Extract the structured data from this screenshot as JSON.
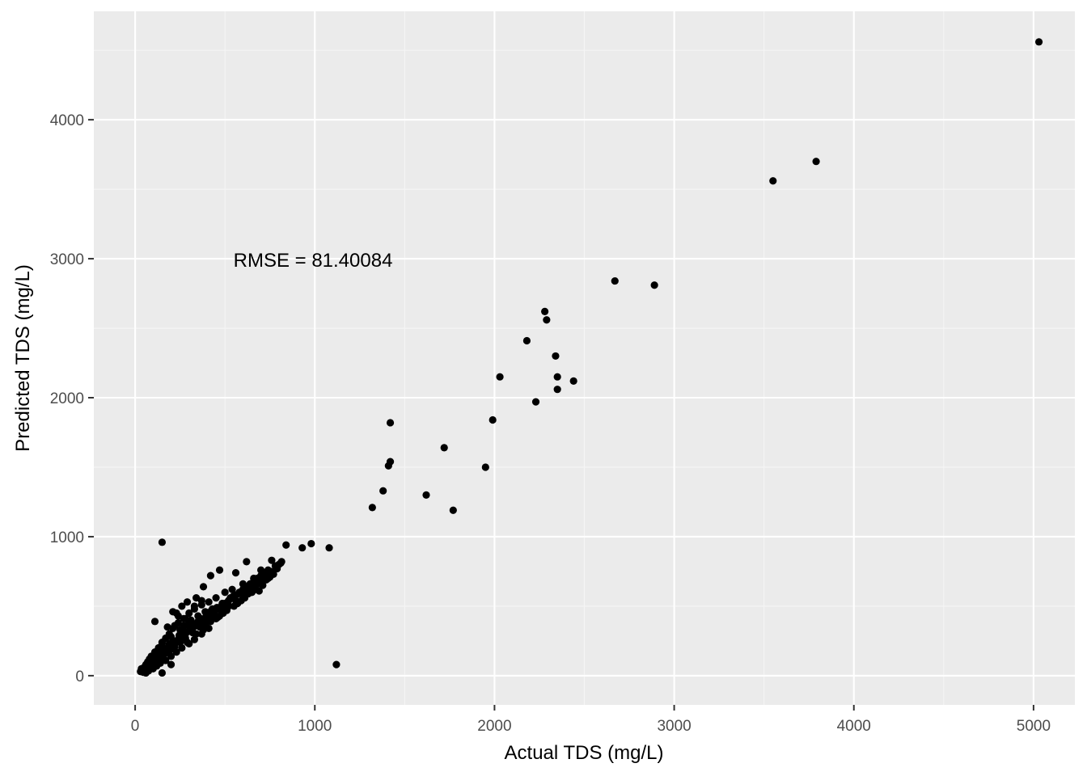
{
  "chart_data": {
    "type": "scatter",
    "xlabel": "Actual TDS (mg/L)",
    "ylabel": "Predicted TDS (mg/L)",
    "xlim": [
      -230,
      5230
    ],
    "ylim": [
      -210,
      4780
    ],
    "x_ticks": [
      0,
      1000,
      2000,
      3000,
      4000,
      5000
    ],
    "x_tick_labels": [
      "0",
      "1000",
      "2000",
      "3000",
      "4000",
      "5000"
    ],
    "y_ticks": [
      0,
      1000,
      2000,
      3000,
      4000
    ],
    "y_tick_labels": [
      "0",
      "1000",
      "2000",
      "3000",
      "4000"
    ],
    "grid": true,
    "annotation": {
      "text": "RMSE = 81.40084",
      "x": 990,
      "y": 2990
    },
    "colors": {
      "panel": "#ebebeb",
      "grid_major": "#ffffff",
      "grid_minor": "#f5f5f5",
      "point": "#000000",
      "tick": "#333333"
    },
    "points": [
      [
        5030,
        4560
      ],
      [
        3790,
        3700
      ],
      [
        3550,
        3560
      ],
      [
        2670,
        2840
      ],
      [
        2890,
        2810
      ],
      [
        2280,
        2620
      ],
      [
        2290,
        2560
      ],
      [
        2180,
        2410
      ],
      [
        2340,
        2300
      ],
      [
        2030,
        2150
      ],
      [
        2350,
        2150
      ],
      [
        2440,
        2120
      ],
      [
        2350,
        2060
      ],
      [
        2230,
        1970
      ],
      [
        1990,
        1840
      ],
      [
        1420,
        1820
      ],
      [
        1720,
        1640
      ],
      [
        1420,
        1540
      ],
      [
        1410,
        1510
      ],
      [
        1950,
        1500
      ],
      [
        1380,
        1330
      ],
      [
        1620,
        1300
      ],
      [
        1320,
        1210
      ],
      [
        1770,
        1190
      ],
      [
        150,
        960
      ],
      [
        980,
        950
      ],
      [
        840,
        940
      ],
      [
        930,
        920
      ],
      [
        1080,
        920
      ],
      [
        1120,
        80
      ],
      [
        760,
        830
      ],
      [
        800,
        800
      ],
      [
        620,
        820
      ],
      [
        470,
        760
      ],
      [
        420,
        720
      ],
      [
        380,
        640
      ],
      [
        560,
        740
      ],
      [
        700,
        760
      ],
      [
        660,
        700
      ],
      [
        600,
        660
      ],
      [
        540,
        620
      ],
      [
        500,
        600
      ],
      [
        450,
        560
      ],
      [
        410,
        530
      ],
      [
        370,
        510
      ],
      [
        330,
        480
      ],
      [
        300,
        450
      ],
      [
        270,
        410
      ],
      [
        240,
        380
      ],
      [
        210,
        340
      ],
      [
        190,
        300
      ],
      [
        170,
        270
      ],
      [
        150,
        240
      ],
      [
        130,
        200
      ],
      [
        110,
        170
      ],
      [
        90,
        140
      ],
      [
        80,
        120
      ],
      [
        70,
        100
      ],
      [
        60,
        80
      ],
      [
        50,
        60
      ],
      [
        40,
        40
      ],
      [
        30,
        30
      ],
      [
        45,
        25
      ],
      [
        60,
        20
      ],
      [
        35,
        50
      ],
      [
        55,
        45
      ],
      [
        75,
        55
      ],
      [
        85,
        75
      ],
      [
        95,
        90
      ],
      [
        105,
        110
      ],
      [
        120,
        130
      ],
      [
        140,
        150
      ],
      [
        160,
        170
      ],
      [
        180,
        200
      ],
      [
        200,
        220
      ],
      [
        220,
        240
      ],
      [
        240,
        260
      ],
      [
        260,
        280
      ],
      [
        280,
        300
      ],
      [
        300,
        320
      ],
      [
        320,
        340
      ],
      [
        340,
        360
      ],
      [
        360,
        380
      ],
      [
        380,
        400
      ],
      [
        400,
        420
      ],
      [
        420,
        440
      ],
      [
        440,
        460
      ],
      [
        460,
        480
      ],
      [
        480,
        500
      ],
      [
        500,
        520
      ],
      [
        520,
        540
      ],
      [
        540,
        560
      ],
      [
        560,
        580
      ],
      [
        580,
        600
      ],
      [
        600,
        620
      ],
      [
        620,
        640
      ],
      [
        640,
        660
      ],
      [
        660,
        680
      ],
      [
        680,
        700
      ],
      [
        700,
        720
      ],
      [
        720,
        740
      ],
      [
        740,
        760
      ],
      [
        780,
        790
      ],
      [
        810,
        810
      ],
      [
        760,
        740
      ],
      [
        720,
        700
      ],
      [
        680,
        660
      ],
      [
        640,
        620
      ],
      [
        600,
        580
      ],
      [
        560,
        540
      ],
      [
        520,
        500
      ],
      [
        480,
        470
      ],
      [
        440,
        430
      ],
      [
        400,
        390
      ],
      [
        360,
        350
      ],
      [
        320,
        310
      ],
      [
        280,
        270
      ],
      [
        250,
        240
      ],
      [
        220,
        210
      ],
      [
        200,
        190
      ],
      [
        180,
        170
      ],
      [
        160,
        150
      ],
      [
        140,
        130
      ],
      [
        120,
        110
      ],
      [
        100,
        90
      ],
      [
        90,
        70
      ],
      [
        110,
        390
      ],
      [
        150,
        230
      ],
      [
        200,
        280
      ],
      [
        250,
        330
      ],
      [
        300,
        380
      ],
      [
        350,
        430
      ],
      [
        230,
        450
      ],
      [
        260,
        500
      ],
      [
        290,
        530
      ],
      [
        330,
        500
      ],
      [
        370,
        540
      ],
      [
        340,
        560
      ],
      [
        180,
        350
      ],
      [
        220,
        360
      ],
      [
        280,
        410
      ],
      [
        310,
        330
      ],
      [
        390,
        460
      ],
      [
        430,
        480
      ],
      [
        460,
        420
      ],
      [
        510,
        480
      ],
      [
        530,
        560
      ],
      [
        570,
        520
      ],
      [
        610,
        560
      ],
      [
        650,
        600
      ],
      [
        670,
        640
      ],
      [
        690,
        610
      ],
      [
        710,
        650
      ],
      [
        730,
        690
      ],
      [
        750,
        710
      ],
      [
        770,
        730
      ],
      [
        330,
        260
      ],
      [
        370,
        300
      ],
      [
        410,
        340
      ],
      [
        300,
        230
      ],
      [
        260,
        200
      ],
      [
        230,
        170
      ],
      [
        200,
        140
      ],
      [
        170,
        110
      ],
      [
        140,
        90
      ],
      [
        120,
        70
      ],
      [
        100,
        50
      ],
      [
        75,
        35
      ],
      [
        150,
        20
      ],
      [
        200,
        80
      ],
      [
        250,
        260
      ],
      [
        290,
        240
      ],
      [
        340,
        300
      ],
      [
        380,
        330
      ],
      [
        420,
        390
      ],
      [
        450,
        410
      ],
      [
        470,
        430
      ],
      [
        490,
        450
      ],
      [
        510,
        470
      ],
      [
        550,
        500
      ],
      [
        590,
        540
      ],
      [
        630,
        590
      ],
      [
        670,
        620
      ],
      [
        710,
        680
      ],
      [
        740,
        700
      ],
      [
        790,
        770
      ],
      [
        210,
        460
      ],
      [
        240,
        430
      ],
      [
        270,
        360
      ],
      [
        310,
        400
      ],
      [
        350,
        390
      ],
      [
        390,
        360
      ],
      [
        130,
        160
      ],
      [
        160,
        190
      ],
      [
        190,
        230
      ],
      [
        215,
        250
      ],
      [
        245,
        290
      ],
      [
        275,
        320
      ],
      [
        305,
        350
      ],
      [
        335,
        370
      ],
      [
        365,
        410
      ],
      [
        395,
        430
      ],
      [
        425,
        470
      ],
      [
        455,
        490
      ],
      [
        485,
        520
      ],
      [
        515,
        530
      ],
      [
        545,
        570
      ],
      [
        575,
        590
      ],
      [
        605,
        610
      ],
      [
        635,
        630
      ],
      [
        665,
        670
      ],
      [
        695,
        690
      ],
      [
        725,
        720
      ],
      [
        755,
        750
      ],
      [
        785,
        780
      ],
      [
        815,
        820
      ]
    ]
  }
}
